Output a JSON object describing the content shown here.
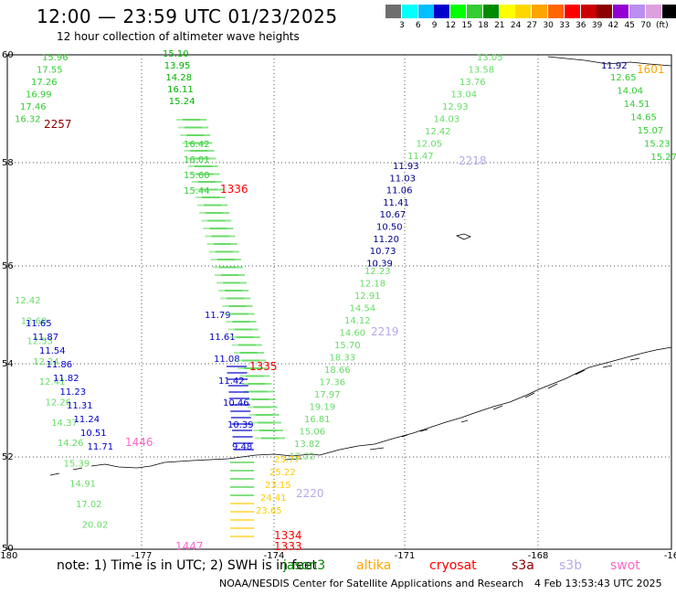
{
  "header": {
    "title": "12:00 — 23:59 UTC 01/23/2025",
    "subtitle": "12 hour collection of altimeter wave heights"
  },
  "colorbar": {
    "ticks": [
      "3",
      "6",
      "9",
      "12",
      "15",
      "18",
      "21",
      "24",
      "27",
      "30",
      "33",
      "36",
      "39",
      "42",
      "45",
      "70",
      "(ft)"
    ],
    "colors": [
      "#6e6e6e",
      "#00ffff",
      "#00bfff",
      "#0000cd",
      "#00ff00",
      "#32cd32",
      "#008b00",
      "#ffff00",
      "#ffd700",
      "#ffa500",
      "#ff6600",
      "#ff0000",
      "#cd0000",
      "#8b0000",
      "#9400d3",
      "#ba8fef",
      "#dda0dd",
      "#000000"
    ]
  },
  "axes": {
    "lat_labels": [
      "60",
      "58",
      "56",
      "54",
      "52",
      "50"
    ],
    "lon_labels": [
      "-180",
      "-177",
      "-174",
      "-171",
      "-168",
      "-16"
    ]
  },
  "tracks": [
    {
      "color": "#32cd32",
      "values": [
        "15.96",
        "17.55",
        "17.26",
        "16.99",
        "17.46",
        "16.32"
      ]
    },
    {
      "color": "#00b000",
      "values": [
        "15.10",
        "13.95",
        "14.28",
        "16.11",
        "15.24"
      ]
    },
    {
      "color": "#66dd66",
      "values": [
        "13.05",
        "13.58",
        "13.76",
        "13.04",
        "12.93",
        "14.03",
        "12.42",
        "12.05",
        "11.47"
      ]
    },
    {
      "color": "#00008b",
      "values": [
        "11.93",
        "11.03",
        "11.06",
        "11.41",
        "10.67",
        "10.50",
        "11.20",
        "10.73",
        "10.39"
      ]
    },
    {
      "color": "#66dd66",
      "values": [
        "12.23",
        "12.18",
        "12.91",
        "14.54",
        "14.12",
        "14.60",
        "15.70",
        "18.33",
        "18.66",
        "17.36",
        "17.97",
        "19.19",
        "16.81",
        "15.06",
        "13.82",
        "12.22"
      ]
    },
    {
      "color": "#66dd66",
      "values": [
        "12.42",
        "12.68",
        "12.53",
        "12.24",
        "12.41",
        "12.26",
        "14.37",
        "14.26",
        "15.39",
        "14.91",
        "17.02",
        "20.02"
      ]
    },
    {
      "color": "#0000cd",
      "values": [
        "11.65",
        "11.87",
        "11.54",
        "11.86",
        "11.82",
        "11.23",
        "11.31",
        "11.24",
        "10.51",
        "11.71"
      ]
    },
    {
      "color": "#32cd32",
      "values": [
        "12.65",
        "14.04",
        "14.51",
        "14.65",
        "15.07",
        "15.23",
        "15.27"
      ]
    },
    {
      "color": "#00008b",
      "values": [
        "11.92"
      ]
    },
    {
      "color": "#0000cd",
      "values": [
        "11.79",
        "11.61",
        "11.08",
        "11.42",
        "10.46",
        "10.39",
        "9.48"
      ]
    },
    {
      "color": "#ffcc00",
      "values": [
        "23.77",
        "25.22",
        "23.15",
        "24.41",
        "23.65"
      ]
    },
    {
      "color": "#32cd32",
      "values": [
        "15.44",
        "15.60",
        "16.01",
        "16.42"
      ]
    }
  ],
  "orbits": [
    {
      "label": "2257",
      "color": "#8b0000"
    },
    {
      "label": "1336",
      "color": "#ff0000"
    },
    {
      "label": "2218",
      "color": "#b8a8e8"
    },
    {
      "label": "1601",
      "color": "#ffa500"
    },
    {
      "label": "2219",
      "color": "#b8a8e8"
    },
    {
      "label": "1335",
      "color": "#ff0000"
    },
    {
      "label": "1446",
      "color": "#ff66cc"
    },
    {
      "label": "2220",
      "color": "#b8a8e8"
    },
    {
      "label": "1334",
      "color": "#ff0000"
    },
    {
      "label": "1333",
      "color": "#ff0000"
    },
    {
      "label": "1447",
      "color": "#ff66cc"
    }
  ],
  "note": "note: 1) Time is in UTC; 2) SWH is in feet",
  "legend": [
    {
      "name": "jason3",
      "color": "#008b00"
    },
    {
      "name": "altika",
      "color": "#ffa500"
    },
    {
      "name": "cryosat",
      "color": "#ff0000"
    },
    {
      "name": "s3a",
      "color": "#8b0000"
    },
    {
      "name": "s3b",
      "color": "#b8a8e8"
    },
    {
      "name": "swot",
      "color": "#ff66cc"
    }
  ],
  "footer": {
    "credit": "NOAA/NESDIS Center for Satellite Applications and Research",
    "timestamp": "4 Feb 13:53:43 UTC 2025"
  }
}
